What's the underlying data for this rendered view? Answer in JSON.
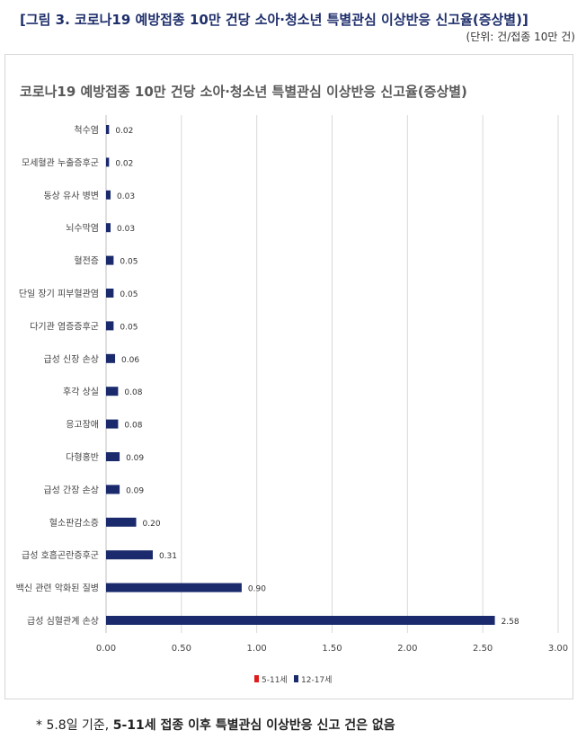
{
  "figure": {
    "title": "[그림 3. 코로나19 예방접종 10만 건당 소아·청소년 특별관심 이상반응 신고율(증상별)]",
    "unit": "(단위: 건/접종 10만 건)"
  },
  "footnote": {
    "prefix": "* 5.8일 기준, ",
    "emphasis": "5-11세 접종 이후 특별관심 이상반응 신고 건은 없음"
  },
  "colors": {
    "series_5_11": "#e01b1b",
    "series_12_17": "#1a2a6c",
    "grid": "#d9d9d9"
  },
  "chart_data": {
    "type": "bar",
    "orientation": "horizontal",
    "title": "코로나19 예방접종 10만 건당 소아·청소년 특별관심 이상반응 신고율(증상별)",
    "categories": [
      "척수염",
      "모세혈관 누출증후군",
      "동상 유사 병변",
      "뇌수막염",
      "혈전증",
      "단일 장기 피부혈관염",
      "다기관 염증증후군",
      "급성 신장 손상",
      "후각 상실",
      "응고장애",
      "다형홍반",
      "급성 간장 손상",
      "혈소판감소증",
      "급성 호흡곤란증후군",
      "백신 관련 악화된 질병",
      "급성 심혈관계 손상"
    ],
    "series": [
      {
        "name": "5-11세",
        "values": [
          0,
          0,
          0,
          0,
          0,
          0,
          0,
          0,
          0,
          0,
          0,
          0,
          0,
          0,
          0,
          0
        ]
      },
      {
        "name": "12-17세",
        "values": [
          0.02,
          0.02,
          0.03,
          0.03,
          0.05,
          0.05,
          0.05,
          0.06,
          0.08,
          0.08,
          0.09,
          0.09,
          0.2,
          0.31,
          0.9,
          2.58
        ],
        "labels": [
          "0.02",
          "0.02",
          "0.03",
          "0.03",
          "0.05",
          "0.05",
          "0.05",
          "0.06",
          "0.08",
          "0.08",
          "0.09",
          "0.09",
          "0.20",
          "0.31",
          "0.90",
          "2.58"
        ]
      }
    ],
    "xlim": [
      0,
      3
    ],
    "xticks": [
      "0.00",
      "0.50",
      "1.00",
      "1.50",
      "2.00",
      "2.50",
      "3.00"
    ],
    "xlabel": "",
    "ylabel": "",
    "grid": "vertical",
    "legend_position": "bottom"
  }
}
